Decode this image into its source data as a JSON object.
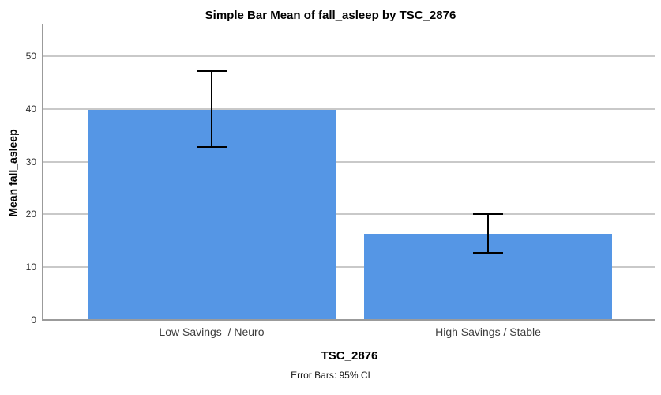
{
  "title": "Simple Bar Mean of fall_asleep by TSC_2876",
  "footnote": "Error Bars: 95% CI",
  "colors": {
    "bar_fill": "#5596E5",
    "gridline": "#C9C9C9",
    "axis_line": "#9B9B9B",
    "error_bar": "#000000"
  },
  "chart_data": {
    "type": "bar",
    "title": "Simple Bar Mean of fall_asleep by TSC_2876",
    "xlabel": "TSC_2876",
    "ylabel": "Mean fall_asleep",
    "categories": [
      "Low Savings  / Neuro",
      "High Savings / Stable"
    ],
    "values": [
      39.8,
      16.3
    ],
    "error_bars": {
      "label": "95% CI",
      "upper": [
        47.1,
        20.1
      ],
      "lower": [
        32.8,
        12.7
      ]
    },
    "yticks": [
      0,
      10,
      20,
      30,
      40,
      50
    ],
    "ylim": [
      0,
      56
    ],
    "grid": true,
    "legend": "none",
    "footnote": "Error Bars: 95% CI"
  }
}
